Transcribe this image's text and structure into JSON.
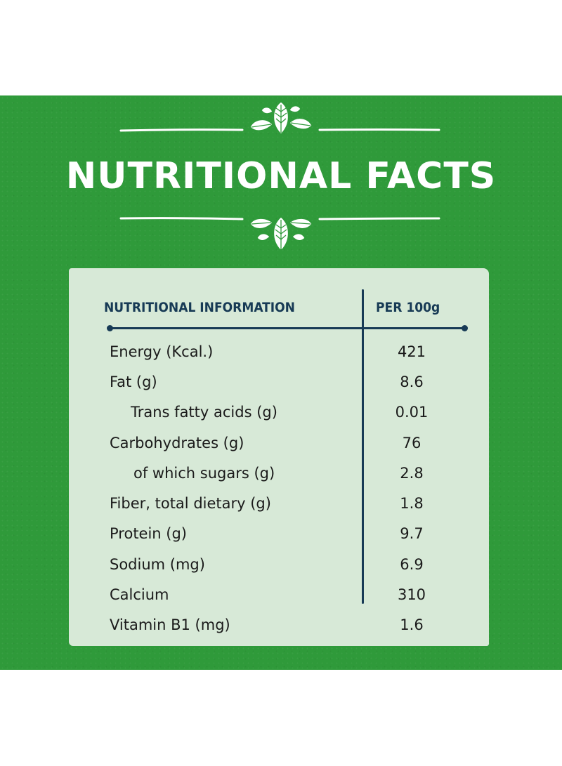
{
  "title": "NUTRITIONAL FACTS",
  "table": {
    "header_left": "NUTRITIONAL INFORMATION",
    "header_right": "PER 100g",
    "rows": [
      {
        "label": "Energy (Kcal.)",
        "value": "421"
      },
      {
        "label": "Fat (g)",
        "value": "8.6"
      },
      {
        "label": "Trans fatty acids (g)",
        "value": "0.01"
      },
      {
        "label": "Carbohydrates (g)",
        "value": "76"
      },
      {
        "label": "of which sugars (g)",
        "value": "2.8"
      },
      {
        "label": "Fiber, total dietary (g)",
        "value": "1.8"
      },
      {
        "label": "Protein (g)",
        "value": "9.7"
      },
      {
        "label": "Sodium (mg)",
        "value": "6.9"
      },
      {
        "label": "Calcium",
        "value": "310"
      },
      {
        "label": "Vitamin B1 (mg)",
        "value": "1.6"
      }
    ]
  },
  "colors": {
    "background_green": "#2f9a3a",
    "card_background": "#d7e9d7",
    "rule_navy": "#173a55",
    "title_text": "#ffffff"
  },
  "icons": [
    "leaf-ornament-icon",
    "leaf-ornament-icon"
  ]
}
